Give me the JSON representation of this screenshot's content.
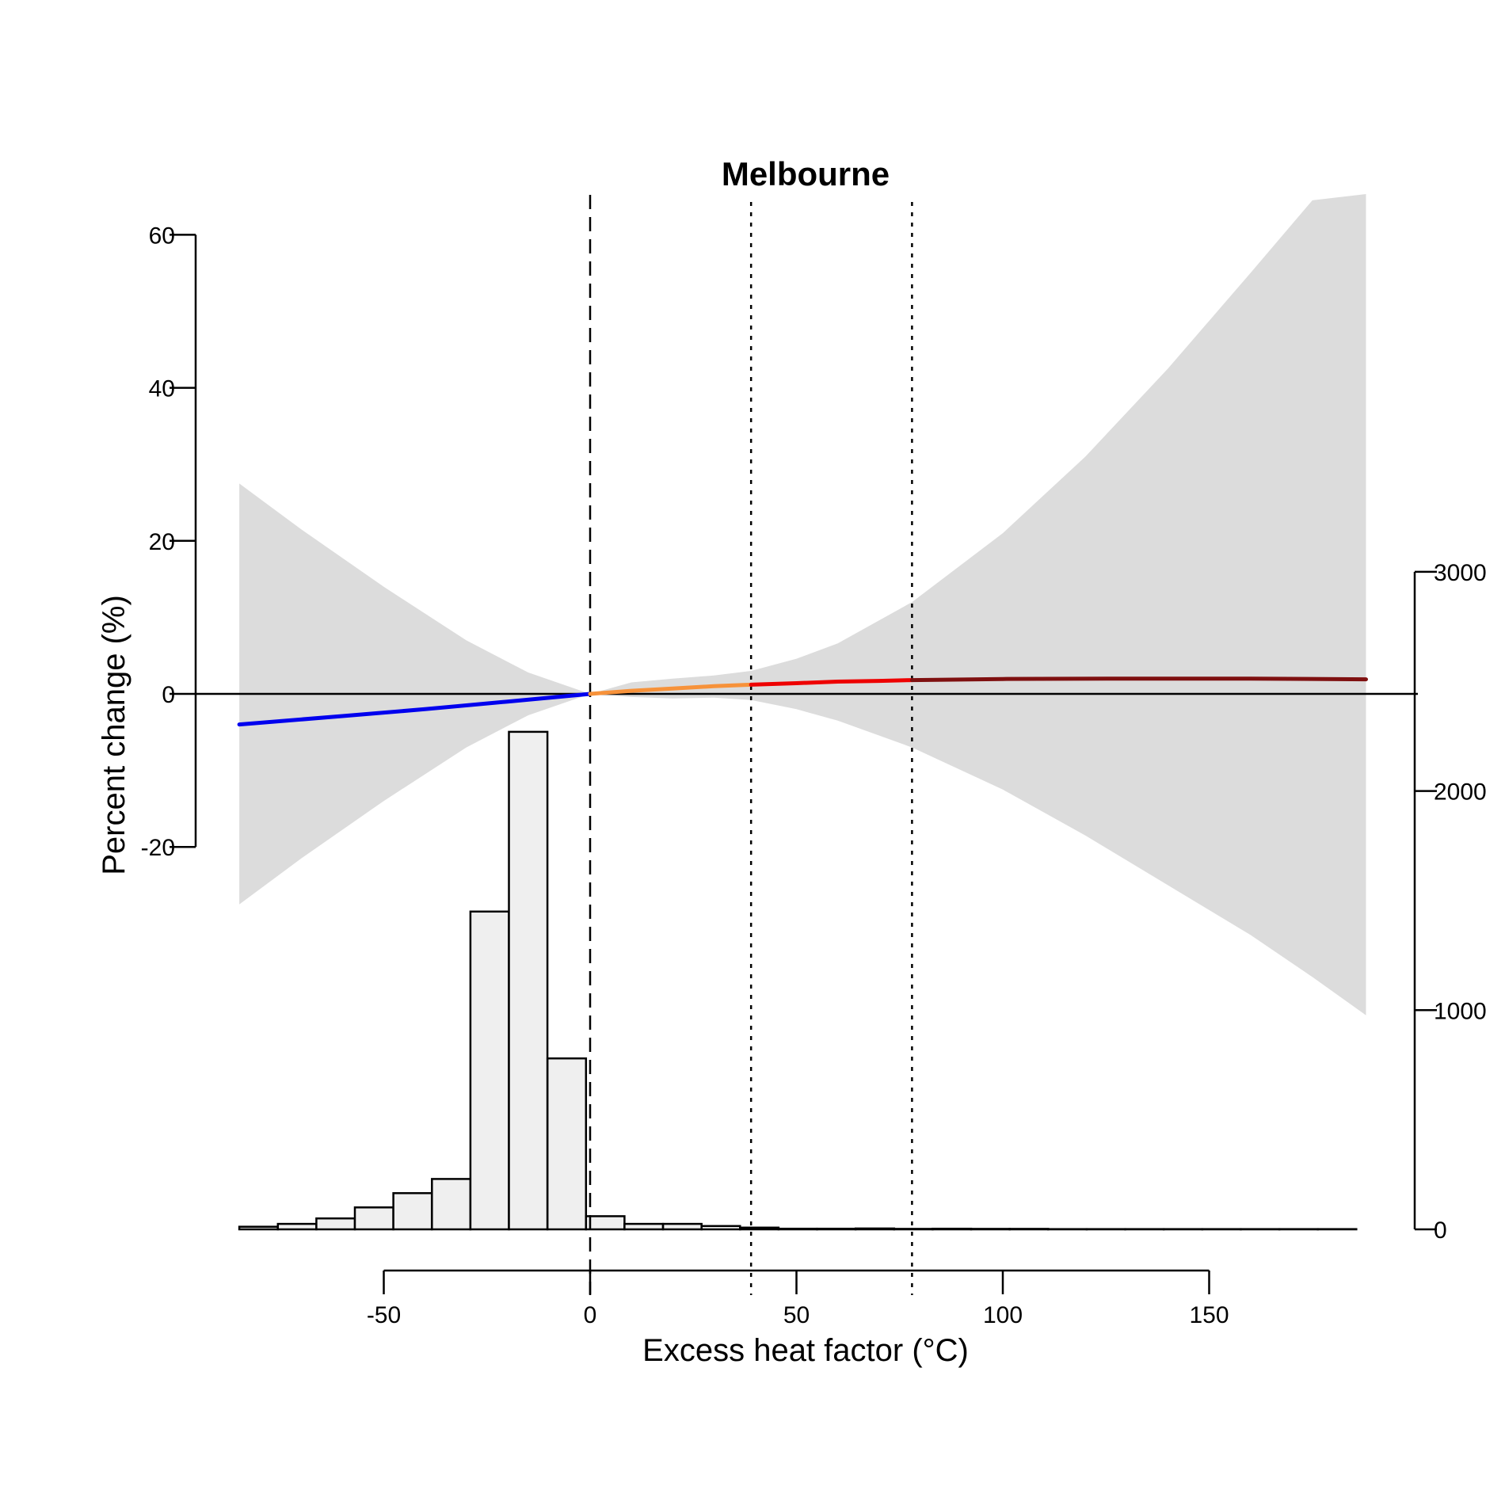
{
  "chart_data": {
    "type": "line",
    "title": "Melbourne",
    "xlabel": "Excess heat factor (°C)",
    "ylabel": "Percent change (%)",
    "xlim": [
      -85,
      188
    ],
    "x_ticks": [
      -50,
      0,
      50,
      100,
      150
    ],
    "y_left": {
      "ticks": [
        -20,
        0,
        20,
        40,
        60
      ],
      "range": [
        -20,
        60
      ]
    },
    "y_right": {
      "ticks": [
        0,
        1000,
        2000,
        3000
      ],
      "range": [
        0,
        3000
      ]
    },
    "reference_lines": {
      "dashed": [
        0
      ],
      "dotted": [
        39,
        78
      ],
      "horizontal": [
        0
      ]
    },
    "estimate": {
      "segments": [
        {
          "color": "#0000ee",
          "x": [
            -85,
            -60,
            -40,
            -20,
            0
          ],
          "y": [
            -4.0,
            -2.9,
            -2.0,
            -1.0,
            0.0
          ]
        },
        {
          "color": "#f7923a",
          "x": [
            0,
            10,
            20,
            30,
            39
          ],
          "y": [
            0.0,
            0.4,
            0.7,
            1.0,
            1.2
          ]
        },
        {
          "color": "#ee0000",
          "x": [
            39,
            50,
            60,
            70,
            78
          ],
          "y": [
            1.2,
            1.4,
            1.6,
            1.7,
            1.8
          ]
        },
        {
          "color": "#7f1010",
          "x": [
            78,
            100,
            130,
            160,
            188
          ],
          "y": [
            1.8,
            1.95,
            2.0,
            2.0,
            1.9
          ]
        }
      ]
    },
    "confidence_band": {
      "color": "#dcdcdc",
      "x": [
        -85,
        -70,
        -50,
        -30,
        -15,
        0,
        10,
        20,
        30,
        39,
        50,
        60,
        78,
        100,
        120,
        140,
        160,
        175,
        188
      ],
      "upper": [
        27.5,
        21.5,
        14.0,
        7.0,
        2.8,
        0.0,
        1.5,
        2.0,
        2.4,
        3.0,
        4.6,
        6.6,
        12.0,
        21.0,
        31.0,
        42.5,
        55.0,
        64.5,
        73.0
      ],
      "lower": [
        -27.5,
        -21.5,
        -14.0,
        -7.0,
        -2.8,
        0.0,
        -0.4,
        -0.6,
        -0.5,
        -0.8,
        -2.0,
        -3.5,
        -7.0,
        -12.5,
        -18.5,
        -25.0,
        -31.5,
        -37.0,
        -42.0
      ]
    },
    "histogram": {
      "bin_width": 9.33,
      "bin_starts": [
        -85,
        -75.67,
        -66.33,
        -57,
        -47.67,
        -38.33,
        -29,
        -19.67,
        -10.33,
        -1,
        8.33,
        17.67,
        27,
        36.33,
        45.67,
        55,
        64.33,
        73.67,
        83,
        92.33,
        101.67,
        111,
        120.33,
        129.67,
        139,
        148.33,
        157.67,
        167,
        176.33
      ],
      "counts": [
        12,
        25,
        50,
        100,
        165,
        230,
        1450,
        2270,
        780,
        60,
        25,
        25,
        15,
        8,
        3,
        3,
        4,
        2,
        3,
        2,
        2,
        1,
        1,
        1,
        1,
        1,
        1,
        1,
        1
      ]
    }
  }
}
